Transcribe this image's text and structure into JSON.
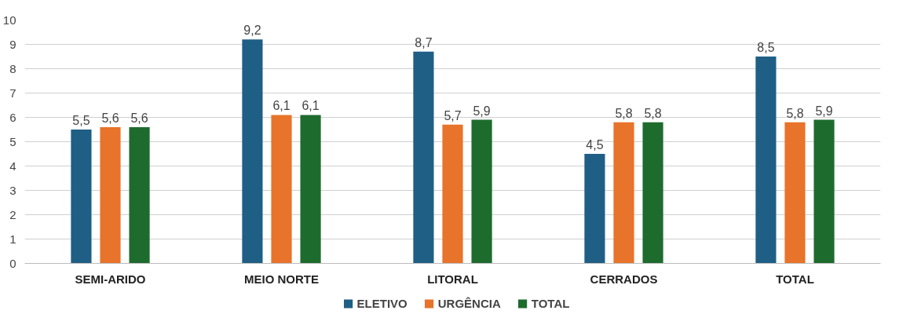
{
  "chart_data": {
    "type": "bar",
    "categories": [
      "SEMI-ARIDO",
      "MEIO NORTE",
      "LITORAL",
      "CERRADOS",
      "TOTAL"
    ],
    "series": [
      {
        "name": "ELETIVO",
        "color": "#1f5f86",
        "values": [
          5.5,
          9.2,
          8.7,
          4.5,
          8.5
        ],
        "value_labels": [
          "5,5",
          "9,2",
          "8,7",
          "4,5",
          "8,5"
        ]
      },
      {
        "name": "URGÊNCIA",
        "color": "#e8732a",
        "values": [
          5.6,
          6.1,
          5.7,
          5.8,
          5.8
        ],
        "value_labels": [
          "5,6",
          "6,1",
          "5,7",
          "5,8",
          "5,8"
        ]
      },
      {
        "name": "TOTAL",
        "color": "#1e6b2e",
        "values": [
          5.6,
          6.1,
          5.9,
          5.8,
          5.9
        ],
        "value_labels": [
          "5,6",
          "6,1",
          "5,9",
          "5,8",
          "5,9"
        ]
      }
    ],
    "ylim": [
      0,
      10
    ],
    "yticks": [
      0,
      1,
      2,
      3,
      4,
      5,
      6,
      7,
      8,
      9,
      10
    ],
    "grid": "y",
    "legend": "bottom"
  }
}
